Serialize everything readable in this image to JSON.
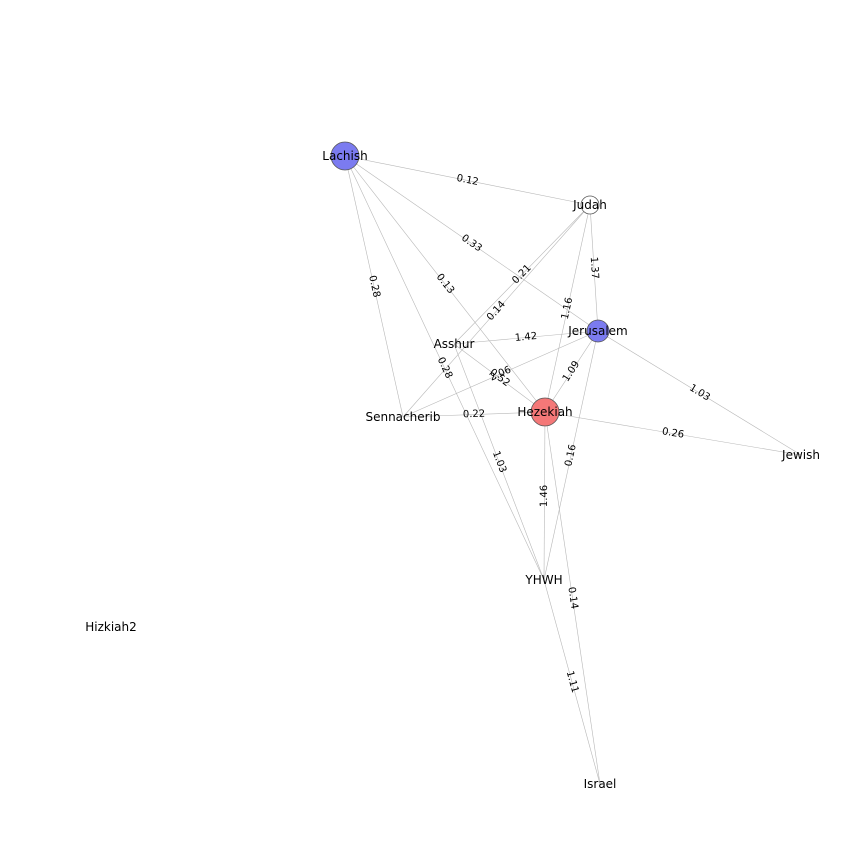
{
  "graph": {
    "nodes": [
      {
        "id": "Lachish",
        "label": "Lachish",
        "color": "#7b7bf0",
        "shape": "circle-large"
      },
      {
        "id": "Judah",
        "label": "Judah",
        "color": "#ffffff",
        "shape": "circle-small"
      },
      {
        "id": "Jerusalem",
        "label": "Jerusalem",
        "color": "#7b7bf0",
        "shape": "circle-medium"
      },
      {
        "id": "Asshur",
        "label": "Asshur",
        "color": "",
        "shape": "none"
      },
      {
        "id": "Hezekiah",
        "label": "Hezekiah",
        "color": "#f47878",
        "shape": "circle-large"
      },
      {
        "id": "Sennacherib",
        "label": "Sennacherib",
        "color": "",
        "shape": "none"
      },
      {
        "id": "Jewish",
        "label": "Jewish",
        "color": "",
        "shape": "none"
      },
      {
        "id": "YHWH",
        "label": "YHWH",
        "color": "",
        "shape": "none"
      },
      {
        "id": "Hizkiah2",
        "label": "Hizkiah2",
        "color": "",
        "shape": "none"
      },
      {
        "id": "Israel",
        "label": "Israel",
        "color": "",
        "shape": "none"
      }
    ],
    "edges": [
      {
        "source": "Lachish",
        "target": "Judah",
        "label": "0.12"
      },
      {
        "source": "Lachish",
        "target": "Jerusalem",
        "label": "0.33"
      },
      {
        "source": "Lachish",
        "target": "Hezekiah",
        "label": "0.13"
      },
      {
        "source": "Lachish",
        "target": "YHWH",
        "label": "0.28"
      },
      {
        "source": "Lachish",
        "target": "Sennacherib",
        "label": "0.28"
      },
      {
        "source": "Judah",
        "target": "Jerusalem",
        "label": "1.37"
      },
      {
        "source": "Judah",
        "target": "Asshur",
        "label": "0.21"
      },
      {
        "source": "Judah",
        "target": "Sennacherib",
        "label": "0.14"
      },
      {
        "source": "Judah",
        "target": "Hezekiah",
        "label": "1.16"
      },
      {
        "source": "Asshur",
        "target": "Jerusalem",
        "label": "1.42"
      },
      {
        "source": "Asshur",
        "target": "Hezekiah",
        "label": "0.52"
      },
      {
        "source": "Asshur",
        "target": "YHWH",
        "label": "1.03"
      },
      {
        "source": "Sennacherib",
        "target": "Jerusalem",
        "label": "2.06"
      },
      {
        "source": "Sennacherib",
        "target": "Hezekiah",
        "label": "0.22"
      },
      {
        "source": "Jerusalem",
        "target": "Hezekiah",
        "label": "1.09"
      },
      {
        "source": "Jerusalem",
        "target": "Jewish",
        "label": "1.03"
      },
      {
        "source": "Jerusalem",
        "target": "YHWH",
        "label": "0.16"
      },
      {
        "source": "Hezekiah",
        "target": "Jewish",
        "label": "0.26"
      },
      {
        "source": "Hezekiah",
        "target": "YHWH",
        "label": "1.46"
      },
      {
        "source": "Hezekiah",
        "target": "Israel",
        "label": "0.14"
      },
      {
        "source": "YHWH",
        "target": "Israel",
        "label": "1.11"
      }
    ]
  }
}
